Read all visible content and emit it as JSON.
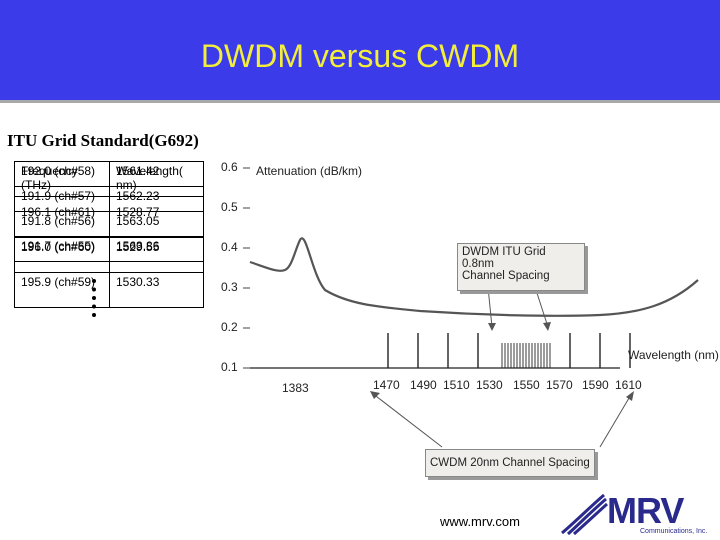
{
  "slide": {
    "title": "DWDM versus CWDM",
    "subtitle": "ITU Grid Standard(G692)",
    "url": "www.mrv.com"
  },
  "table": {
    "header": [
      "Frequency (THz)",
      "Wavelength( nm)"
    ],
    "rows_top": [
      [
        "196.1 (ch#61)",
        "1528.77"
      ],
      [
        "196.0 (ch#60)",
        "1529.55"
      ],
      [
        "195.9 (ch#59)",
        "1530.33"
      ]
    ],
    "rows_bottom": [
      [
        "192.0 (ch#58)",
        "1561.42"
      ],
      [
        "191.9 (ch#57)",
        "1562.23"
      ],
      [
        "191.8 (ch#56)",
        "1563.05"
      ],
      [
        "191.7 (ch#55)",
        "1563.86"
      ]
    ]
  },
  "figure": {
    "y_title": "Attenuation (dB/km)",
    "x_title": "Wavelength (nm)",
    "y_ticks": [
      "0.6",
      "0.5",
      "0.4",
      "0.3",
      "0.2",
      "0.1"
    ],
    "x_ticks": [
      "1383",
      "1470",
      "1490",
      "1510",
      "1530",
      "1550",
      "1570",
      "1590",
      "1610"
    ],
    "dwdm_callout_line1": "DWDM ITU Grid 0.8nm",
    "dwdm_callout_line2": "Channel Spacing",
    "cwdm_callout": "CWDM 20nm Channel Spacing"
  },
  "logo": {
    "name": "MRV",
    "sub": "Communications, Inc."
  }
}
